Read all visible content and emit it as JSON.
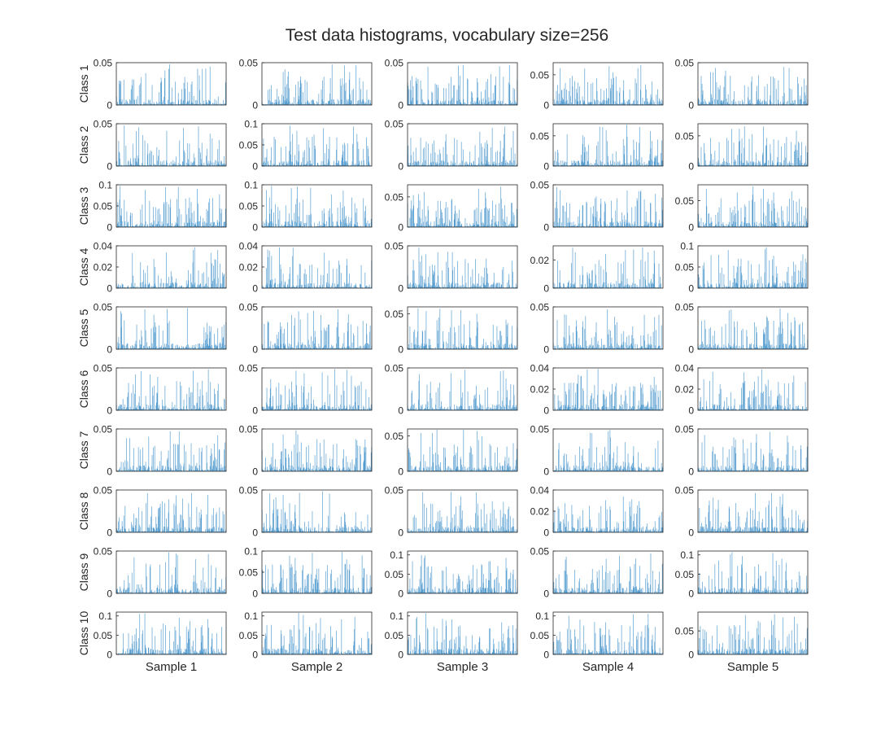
{
  "figure": {
    "title": "Test data histograms, vocabulary size=256",
    "bar_color": "#3e8fc9",
    "axis_color": "#262626",
    "row_labels": [
      "Class 1",
      "Class 2",
      "Class 3",
      "Class 4",
      "Class 5",
      "Class 6",
      "Class 7",
      "Class 8",
      "Class 9",
      "Class 10"
    ],
    "col_labels": [
      "Sample 1",
      "Sample 2",
      "Sample 3",
      "Sample 4",
      "Sample 5"
    ]
  },
  "chart_data": {
    "type": "bar",
    "layout": "small-multiples 10 rows x 5 columns",
    "bins": 256,
    "x_range": [
      1,
      256
    ],
    "panels": [
      [
        {
          "ymax": 0.05,
          "ticks": [
            "0",
            "0.05"
          ]
        },
        {
          "ymax": 0.05,
          "ticks": [
            "0",
            "0.05"
          ]
        },
        {
          "ymax": 0.05,
          "ticks": [
            "0",
            "0.05"
          ]
        },
        {
          "ymax": 0.07,
          "ticks": [
            "0",
            "0.05"
          ]
        },
        {
          "ymax": 0.05,
          "ticks": [
            "0",
            "0.05"
          ]
        }
      ],
      [
        {
          "ymax": 0.05,
          "ticks": [
            "0",
            "0.05"
          ]
        },
        {
          "ymax": 0.1,
          "ticks": [
            "0",
            "0.05",
            "0.1"
          ]
        },
        {
          "ymax": 0.05,
          "ticks": [
            "0",
            "0.05"
          ]
        },
        {
          "ymax": 0.07,
          "ticks": [
            "0",
            "0.05"
          ]
        },
        {
          "ymax": 0.07,
          "ticks": [
            "0",
            "0.05"
          ]
        }
      ],
      [
        {
          "ymax": 0.1,
          "ticks": [
            "0",
            "0.05",
            "0.1"
          ]
        },
        {
          "ymax": 0.1,
          "ticks": [
            "0",
            "0.05",
            "0.1"
          ]
        },
        {
          "ymax": 0.07,
          "ticks": [
            "0",
            "0.05"
          ]
        },
        {
          "ymax": 0.05,
          "ticks": [
            "0",
            "0.05"
          ]
        },
        {
          "ymax": 0.08,
          "ticks": [
            "0",
            "0.05"
          ]
        }
      ],
      [
        {
          "ymax": 0.04,
          "ticks": [
            "0",
            "0.02",
            "0.04"
          ]
        },
        {
          "ymax": 0.04,
          "ticks": [
            "0",
            "0.02",
            "0.04"
          ]
        },
        {
          "ymax": 0.05,
          "ticks": [
            "0",
            "0.05"
          ]
        },
        {
          "ymax": 0.03,
          "ticks": [
            "0",
            "0.02"
          ]
        },
        {
          "ymax": 0.1,
          "ticks": [
            "0",
            "0.05",
            "0.1"
          ]
        }
      ],
      [
        {
          "ymax": 0.05,
          "ticks": [
            "0",
            "0.05"
          ]
        },
        {
          "ymax": 0.05,
          "ticks": [
            "0",
            "0.05"
          ]
        },
        {
          "ymax": 0.06,
          "ticks": [
            "0",
            "0.05"
          ]
        },
        {
          "ymax": 0.05,
          "ticks": [
            "0",
            "0.05"
          ]
        },
        {
          "ymax": 0.05,
          "ticks": [
            "0",
            "0.05"
          ]
        }
      ],
      [
        {
          "ymax": 0.05,
          "ticks": [
            "0",
            "0.05"
          ]
        },
        {
          "ymax": 0.05,
          "ticks": [
            "0",
            "0.05"
          ]
        },
        {
          "ymax": 0.05,
          "ticks": [
            "0",
            "0.05"
          ]
        },
        {
          "ymax": 0.04,
          "ticks": [
            "0",
            "0.02",
            "0.04"
          ]
        },
        {
          "ymax": 0.04,
          "ticks": [
            "0",
            "0.02",
            "0.04"
          ]
        }
      ],
      [
        {
          "ymax": 0.05,
          "ticks": [
            "0",
            "0.05"
          ]
        },
        {
          "ymax": 0.05,
          "ticks": [
            "0",
            "0.05"
          ]
        },
        {
          "ymax": 0.06,
          "ticks": [
            "0",
            "0.05"
          ]
        },
        {
          "ymax": 0.05,
          "ticks": [
            "0",
            "0.05"
          ]
        },
        {
          "ymax": 0.05,
          "ticks": [
            "0",
            "0.05"
          ]
        }
      ],
      [
        {
          "ymax": 0.05,
          "ticks": [
            "0",
            "0.05"
          ]
        },
        {
          "ymax": 0.05,
          "ticks": [
            "0",
            "0.05"
          ]
        },
        {
          "ymax": 0.05,
          "ticks": [
            "0",
            "0.05"
          ]
        },
        {
          "ymax": 0.04,
          "ticks": [
            "0",
            "0.02",
            "0.04"
          ]
        },
        {
          "ymax": 0.05,
          "ticks": [
            "0",
            "0.05"
          ]
        }
      ],
      [
        {
          "ymax": 0.05,
          "ticks": [
            "0",
            "0.05"
          ]
        },
        {
          "ymax": 0.1,
          "ticks": [
            "0",
            "0.05",
            "0.1"
          ]
        },
        {
          "ymax": 0.11,
          "ticks": [
            "0",
            "0.05",
            "0.1"
          ]
        },
        {
          "ymax": 0.05,
          "ticks": [
            "0",
            "0.05"
          ]
        },
        {
          "ymax": 0.11,
          "ticks": [
            "0",
            "0.05",
            "0.1"
          ]
        }
      ],
      [
        {
          "ymax": 0.11,
          "ticks": [
            "0",
            "0.05",
            "0.1"
          ]
        },
        {
          "ymax": 0.11,
          "ticks": [
            "0",
            "0.05",
            "0.1"
          ]
        },
        {
          "ymax": 0.11,
          "ticks": [
            "0",
            "0.05",
            "0.1"
          ]
        },
        {
          "ymax": 0.11,
          "ticks": [
            "0",
            "0.05",
            "0.1"
          ]
        },
        {
          "ymax": 0.09,
          "ticks": [
            "0",
            "0.05"
          ]
        }
      ]
    ]
  }
}
